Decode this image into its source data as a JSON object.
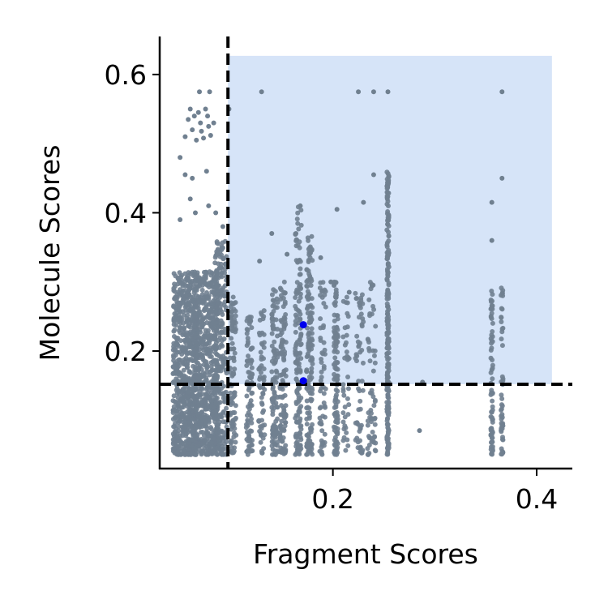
{
  "chart_data": {
    "type": "scatter",
    "title": "",
    "xlabel": "Fragment Scores",
    "ylabel": "Molecule Scores",
    "xlim": [
      0.03,
      0.435
    ],
    "ylim": [
      0.03,
      0.655
    ],
    "xticks": [
      0.2,
      0.4
    ],
    "xtick_labels": [
      "0.2",
      "0.4"
    ],
    "yticks": [
      0.2,
      0.4,
      0.6
    ],
    "ytick_labels": [
      "0.2",
      "0.4",
      "0.6"
    ],
    "grid": false,
    "legend": "none",
    "threshold_lines": {
      "x": 0.097,
      "y": 0.152,
      "style": "dashed",
      "color": "#000000"
    },
    "highlight_region": {
      "x": [
        0.097,
        0.415
      ],
      "y": [
        0.152,
        0.627
      ],
      "color": "#d6e4f8"
    },
    "point_color": "#708090",
    "highlight_point_color": "#0000ee",
    "highlighted_points": [
      {
        "x": 0.171,
        "y": 0.238
      },
      {
        "x": 0.171,
        "y": 0.157
      }
    ],
    "clusters": [
      {
        "x": 0.055,
        "ymin": 0.05,
        "ymax": 0.315,
        "n": 700,
        "spread": 0.012
      },
      {
        "x": 0.075,
        "ymin": 0.05,
        "ymax": 0.315,
        "n": 650,
        "spread": 0.012
      },
      {
        "x": 0.09,
        "ymin": 0.05,
        "ymax": 0.36,
        "n": 250,
        "spread": 0.006
      },
      {
        "x": 0.102,
        "ymin": 0.05,
        "ymax": 0.28,
        "n": 90,
        "spread": 0.003
      },
      {
        "x": 0.118,
        "ymin": 0.05,
        "ymax": 0.25,
        "n": 90,
        "spread": 0.003
      },
      {
        "x": 0.13,
        "ymin": 0.05,
        "ymax": 0.26,
        "n": 60,
        "spread": 0.003
      },
      {
        "x": 0.143,
        "ymin": 0.05,
        "ymax": 0.29,
        "n": 110,
        "spread": 0.003
      },
      {
        "x": 0.151,
        "ymin": 0.05,
        "ymax": 0.3,
        "n": 110,
        "spread": 0.003
      },
      {
        "x": 0.166,
        "ymin": 0.05,
        "ymax": 0.41,
        "n": 150,
        "spread": 0.003
      },
      {
        "x": 0.177,
        "ymin": 0.05,
        "ymax": 0.37,
        "n": 150,
        "spread": 0.003
      },
      {
        "x": 0.19,
        "ymin": 0.05,
        "ymax": 0.3,
        "n": 60,
        "spread": 0.003
      },
      {
        "x": 0.203,
        "ymin": 0.05,
        "ymax": 0.3,
        "n": 120,
        "spread": 0.002
      },
      {
        "x": 0.213,
        "ymin": 0.05,
        "ymax": 0.28,
        "n": 40,
        "spread": 0.003
      },
      {
        "x": 0.226,
        "ymin": 0.05,
        "ymax": 0.3,
        "n": 60,
        "spread": 0.004
      },
      {
        "x": 0.238,
        "ymin": 0.05,
        "ymax": 0.3,
        "n": 60,
        "spread": 0.004
      },
      {
        "x": 0.254,
        "ymin": 0.05,
        "ymax": 0.46,
        "n": 220,
        "spread": 0.001
      },
      {
        "x": 0.356,
        "ymin": 0.05,
        "ymax": 0.29,
        "n": 70,
        "spread": 0.001
      },
      {
        "x": 0.366,
        "ymin": 0.05,
        "ymax": 0.3,
        "n": 50,
        "spread": 0.001
      }
    ],
    "points": [
      {
        "x": 0.06,
        "y": 0.55
      },
      {
        "x": 0.068,
        "y": 0.545
      },
      {
        "x": 0.075,
        "y": 0.55
      },
      {
        "x": 0.062,
        "y": 0.52
      },
      {
        "x": 0.07,
        "y": 0.53
      },
      {
        "x": 0.078,
        "y": 0.525
      },
      {
        "x": 0.055,
        "y": 0.51
      },
      {
        "x": 0.066,
        "y": 0.505
      },
      {
        "x": 0.073,
        "y": 0.508
      },
      {
        "x": 0.08,
        "y": 0.512
      },
      {
        "x": 0.058,
        "y": 0.535
      },
      {
        "x": 0.064,
        "y": 0.54
      },
      {
        "x": 0.071,
        "y": 0.518
      },
      {
        "x": 0.077,
        "y": 0.54
      },
      {
        "x": 0.083,
        "y": 0.53
      },
      {
        "x": 0.069,
        "y": 0.575
      },
      {
        "x": 0.079,
        "y": 0.575
      },
      {
        "x": 0.05,
        "y": 0.48
      },
      {
        "x": 0.055,
        "y": 0.455
      },
      {
        "x": 0.062,
        "y": 0.45
      },
      {
        "x": 0.076,
        "y": 0.46
      },
      {
        "x": 0.05,
        "y": 0.39
      },
      {
        "x": 0.06,
        "y": 0.42
      },
      {
        "x": 0.065,
        "y": 0.4
      },
      {
        "x": 0.078,
        "y": 0.41
      },
      {
        "x": 0.085,
        "y": 0.4
      },
      {
        "x": 0.092,
        "y": 0.38
      },
      {
        "x": 0.098,
        "y": 0.55
      },
      {
        "x": 0.13,
        "y": 0.575
      },
      {
        "x": 0.225,
        "y": 0.575
      },
      {
        "x": 0.24,
        "y": 0.575
      },
      {
        "x": 0.254,
        "y": 0.575
      },
      {
        "x": 0.366,
        "y": 0.575
      },
      {
        "x": 0.24,
        "y": 0.455
      },
      {
        "x": 0.366,
        "y": 0.45
      },
      {
        "x": 0.23,
        "y": 0.415
      },
      {
        "x": 0.204,
        "y": 0.405
      },
      {
        "x": 0.356,
        "y": 0.415
      },
      {
        "x": 0.356,
        "y": 0.36
      },
      {
        "x": 0.168,
        "y": 0.41
      },
      {
        "x": 0.14,
        "y": 0.37
      },
      {
        "x": 0.155,
        "y": 0.34
      },
      {
        "x": 0.188,
        "y": 0.335
      },
      {
        "x": 0.198,
        "y": 0.3
      },
      {
        "x": 0.216,
        "y": 0.285
      },
      {
        "x": 0.128,
        "y": 0.33
      },
      {
        "x": 0.288,
        "y": 0.155
      },
      {
        "x": 0.285,
        "y": 0.085
      }
    ]
  }
}
